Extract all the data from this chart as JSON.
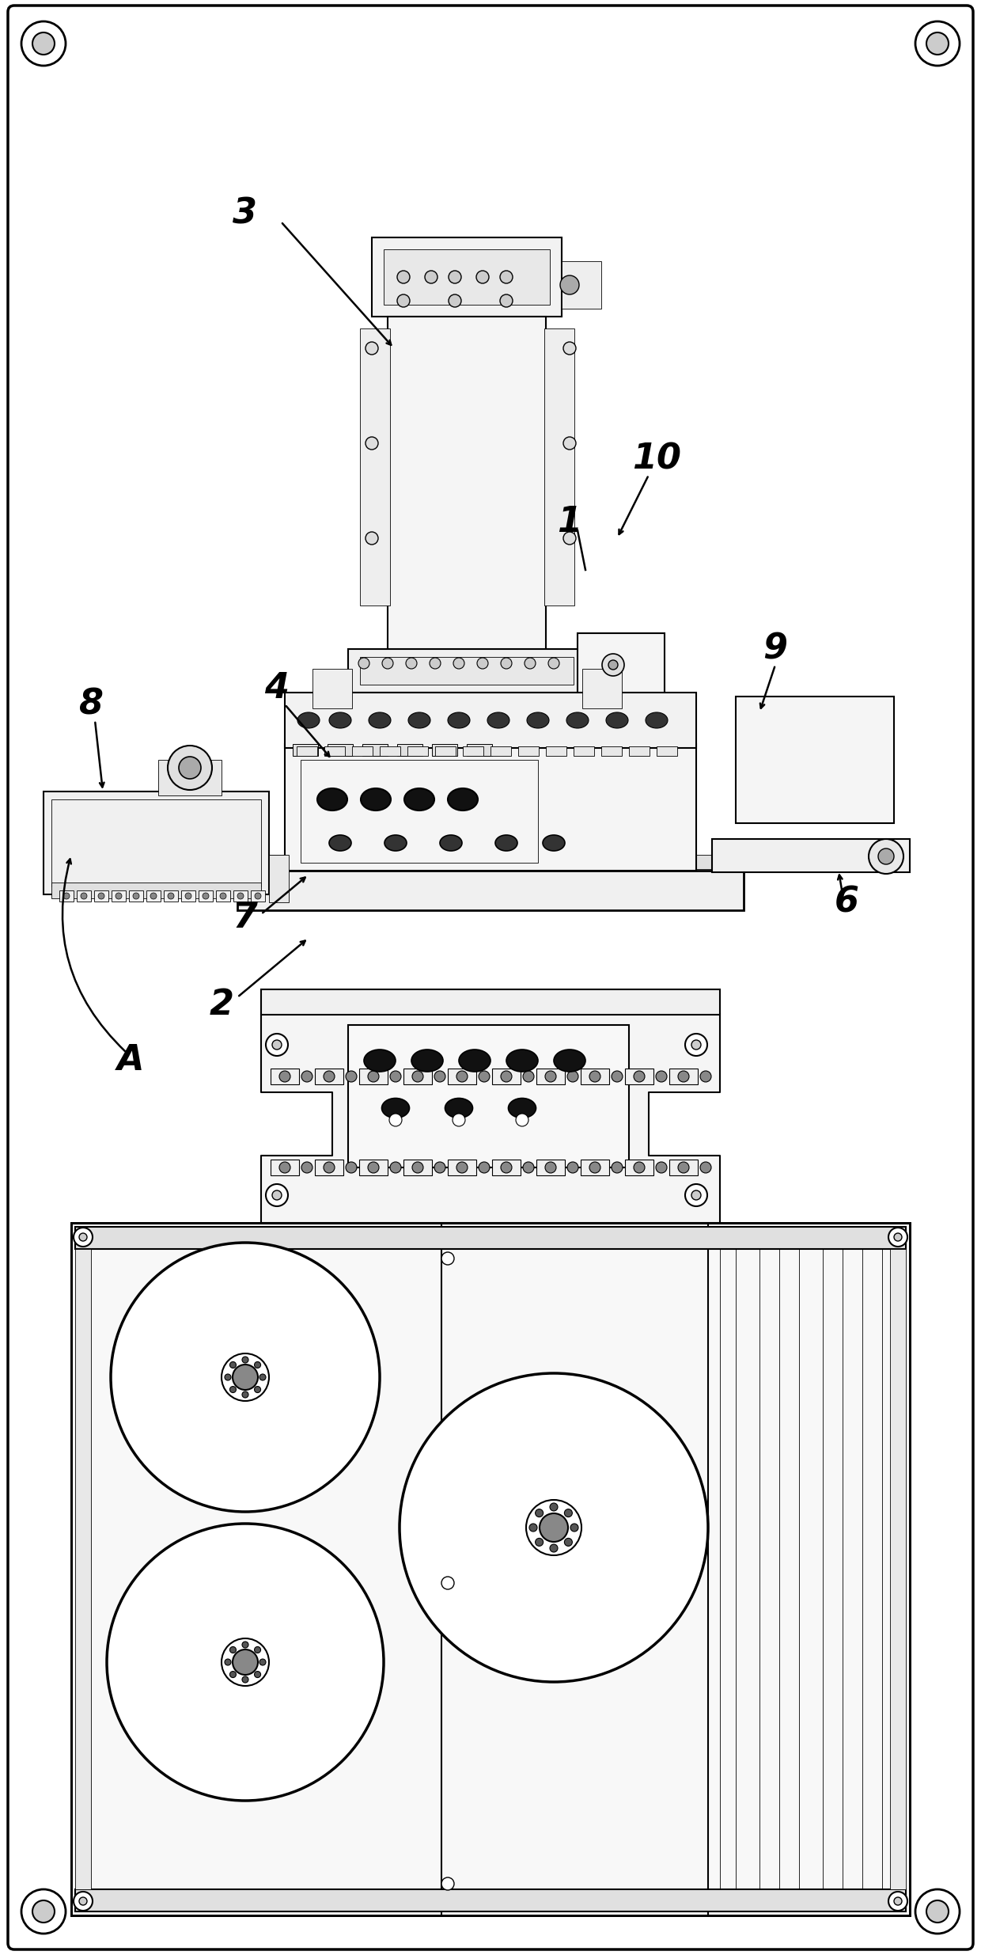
{
  "bg_color": "#ffffff",
  "fig_width": 12.4,
  "fig_height": 24.7,
  "dpi": 100
}
